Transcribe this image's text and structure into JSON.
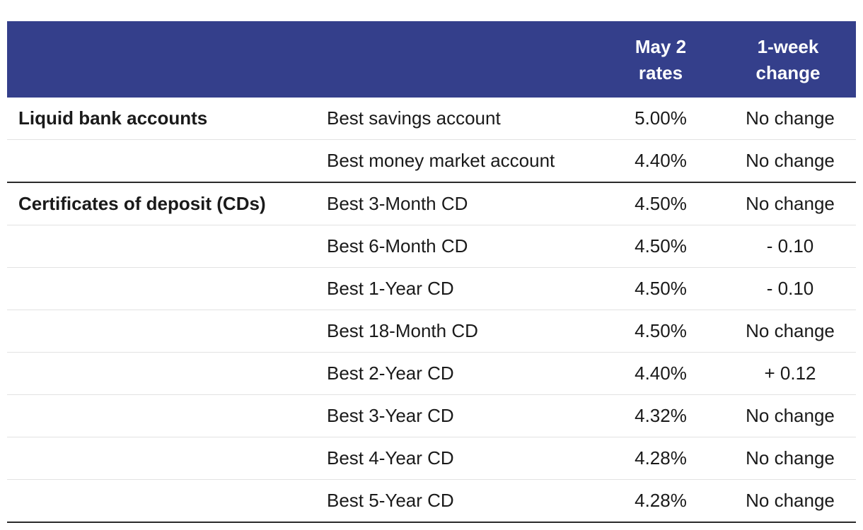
{
  "table": {
    "headers": {
      "group": "",
      "product": "",
      "rate_line1": "May 2",
      "rate_line2": "rates",
      "change_line1": "1-week",
      "change_line2": "change"
    },
    "rows": [
      {
        "group": "Liquid bank accounts",
        "product": "Best savings account",
        "rate": "5.00%",
        "change": "No change"
      },
      {
        "group": "",
        "product": "Best money market account",
        "rate": "4.40%",
        "change": "No change"
      },
      {
        "group": "Certificates of deposit (CDs)",
        "product": "Best 3-Month CD",
        "rate": "4.50%",
        "change": "No change"
      },
      {
        "group": "",
        "product": "Best 6-Month CD",
        "rate": "4.50%",
        "change": "- 0.10"
      },
      {
        "group": "",
        "product": "Best 1-Year CD",
        "rate": "4.50%",
        "change": "- 0.10"
      },
      {
        "group": "",
        "product": "Best 18-Month CD",
        "rate": "4.50%",
        "change": "No change"
      },
      {
        "group": "",
        "product": "Best 2-Year CD",
        "rate": "4.40%",
        "change": "+ 0.12"
      },
      {
        "group": "",
        "product": "Best 3-Year CD",
        "rate": "4.32%",
        "change": "No change"
      },
      {
        "group": "",
        "product": "Best 4-Year CD",
        "rate": "4.28%",
        "change": "No change"
      },
      {
        "group": "",
        "product": "Best 5-Year CD",
        "rate": "4.28%",
        "change": "No change"
      }
    ]
  },
  "colors": {
    "header_background": "#343f8b",
    "header_text": "#ffffff",
    "body_text": "#1a1a1a",
    "row_divider": "#e2e2e2",
    "group_divider": "#2a2a2a"
  }
}
